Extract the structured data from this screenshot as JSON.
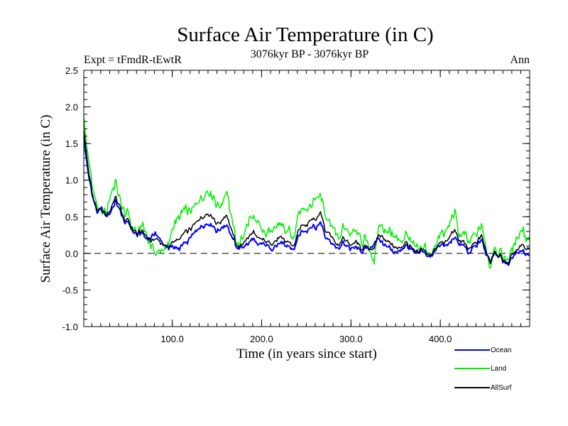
{
  "page": {
    "title": "Surface Air Temperature (in C)",
    "expt": "Expt = tFmdR-tEwtR",
    "period": "3076kyr BP - 3076kyr BP",
    "season": "Ann"
  },
  "chart_data": {
    "type": "line",
    "title": "Surface Air Temperature (in C)",
    "xlabel": "Time (in years since start)",
    "ylabel": "Surface Air Temperature (in C)",
    "xlim": [
      1,
      500
    ],
    "ylim": [
      -1.0,
      2.5
    ],
    "x_ticks": [
      100,
      200,
      300,
      400
    ],
    "x_tick_labels": [
      "100.0",
      "200.0",
      "300.0",
      "400.0"
    ],
    "y_ticks": [
      -1.0,
      -0.5,
      0.0,
      0.5,
      1.0,
      1.5,
      2.0,
      2.5
    ],
    "y_tick_labels": [
      "-1.0",
      "-0.5",
      "0.0",
      "0.5",
      "1.0",
      "1.5",
      "2.0",
      "2.5"
    ],
    "reference_line": {
      "y": 0.0,
      "style": "dashed"
    },
    "legend_position": "bottom-right",
    "x_step": 5,
    "series": [
      {
        "name": "Ocean",
        "color": "#0000ff",
        "values": [
          1.6,
          1.1,
          0.75,
          0.55,
          0.6,
          0.5,
          0.55,
          0.7,
          0.6,
          0.45,
          0.4,
          0.3,
          0.25,
          0.3,
          0.2,
          0.2,
          0.3,
          0.2,
          0.1,
          0.05,
          0.1,
          0.05,
          0.1,
          0.15,
          0.2,
          0.3,
          0.35,
          0.4,
          0.4,
          0.35,
          0.3,
          0.35,
          0.4,
          0.25,
          0.1,
          0.05,
          0.1,
          0.15,
          0.2,
          0.1,
          0.15,
          0.1,
          0.05,
          0.1,
          0.15,
          0.1,
          0.1,
          0.05,
          0.2,
          0.3,
          0.3,
          0.4,
          0.35,
          0.45,
          0.25,
          0.2,
          0.1,
          0.05,
          0.15,
          0.1,
          0.05,
          0.1,
          0.0,
          0.05,
          0.05,
          0.15,
          0.2,
          0.15,
          0.1,
          0.05,
          0.0,
          0.05,
          0.1,
          0.05,
          0.0,
          0.0,
          0.05,
          -0.05,
          0.0,
          0.05,
          0.1,
          0.1,
          0.15,
          0.2,
          0.15,
          0.1,
          0.0,
          0.05,
          0.1,
          0.2,
          0.0,
          -0.1,
          0.0,
          -0.05,
          -0.1,
          -0.15,
          -0.05,
          0.0,
          0.05,
          0.0
        ]
      },
      {
        "name": "Land",
        "color": "#00ee00",
        "values": [
          1.9,
          1.3,
          0.85,
          0.65,
          0.5,
          0.55,
          0.75,
          0.95,
          0.75,
          0.6,
          0.5,
          0.35,
          0.3,
          0.4,
          0.25,
          0.1,
          0.0,
          0.05,
          0.05,
          0.1,
          0.35,
          0.5,
          0.55,
          0.6,
          0.55,
          0.65,
          0.75,
          0.8,
          0.85,
          0.75,
          0.6,
          0.7,
          0.85,
          0.55,
          0.15,
          0.1,
          0.3,
          0.45,
          0.5,
          0.4,
          0.3,
          0.25,
          0.3,
          0.35,
          0.4,
          0.3,
          0.35,
          0.2,
          0.5,
          0.6,
          0.6,
          0.7,
          0.75,
          0.85,
          0.55,
          0.45,
          0.35,
          0.2,
          0.35,
          0.3,
          0.25,
          0.3,
          0.15,
          0.2,
          0.05,
          -0.1,
          0.35,
          0.4,
          0.3,
          0.25,
          0.2,
          0.15,
          0.3,
          0.15,
          0.1,
          0.05,
          0.1,
          0.0,
          0.05,
          0.1,
          0.25,
          0.3,
          0.4,
          0.55,
          0.3,
          0.25,
          0.15,
          0.2,
          0.25,
          0.4,
          0.1,
          -0.2,
          0.05,
          0.0,
          -0.05,
          -0.05,
          0.05,
          0.2,
          0.35,
          0.25
        ]
      },
      {
        "name": "AllSurf",
        "color": "#000000",
        "values": [
          1.7,
          1.15,
          0.78,
          0.58,
          0.58,
          0.52,
          0.6,
          0.76,
          0.65,
          0.5,
          0.43,
          0.32,
          0.27,
          0.33,
          0.22,
          0.17,
          0.22,
          0.16,
          0.09,
          0.07,
          0.17,
          0.18,
          0.24,
          0.29,
          0.32,
          0.41,
          0.47,
          0.52,
          0.53,
          0.47,
          0.39,
          0.45,
          0.53,
          0.34,
          0.12,
          0.07,
          0.16,
          0.24,
          0.29,
          0.19,
          0.2,
          0.15,
          0.12,
          0.17,
          0.22,
          0.16,
          0.17,
          0.1,
          0.29,
          0.39,
          0.39,
          0.49,
          0.47,
          0.57,
          0.34,
          0.28,
          0.18,
          0.1,
          0.21,
          0.16,
          0.11,
          0.16,
          0.05,
          0.09,
          0.05,
          0.08,
          0.24,
          0.22,
          0.16,
          0.11,
          0.06,
          0.08,
          0.16,
          0.08,
          0.03,
          0.02,
          0.07,
          -0.03,
          0.02,
          0.07,
          0.15,
          0.16,
          0.23,
          0.31,
          0.2,
          0.15,
          0.05,
          0.1,
          0.15,
          0.26,
          0.03,
          -0.13,
          0.02,
          -0.04,
          -0.09,
          -0.12,
          -0.02,
          0.06,
          0.14,
          0.08
        ]
      }
    ]
  }
}
